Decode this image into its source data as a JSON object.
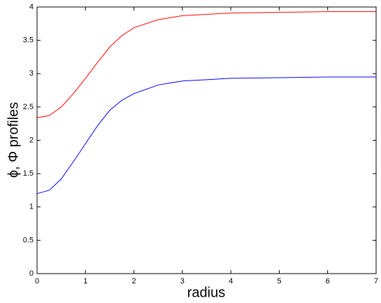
{
  "chart_data": {
    "type": "line",
    "x_label": "radius",
    "y_label": "ϕ, Φ profiles",
    "x": [
      0,
      0.25,
      0.5,
      0.75,
      1,
      1.25,
      1.5,
      1.75,
      2,
      2.5,
      3,
      3.5,
      4,
      5,
      6,
      7
    ],
    "series": [
      {
        "color": "#ff0000",
        "values": [
          2.34,
          2.37,
          2.5,
          2.7,
          2.93,
          3.17,
          3.4,
          3.57,
          3.69,
          3.81,
          3.87,
          3.89,
          3.91,
          3.92,
          3.93,
          3.93
        ]
      },
      {
        "color": "#0000ff",
        "values": [
          1.2,
          1.25,
          1.42,
          1.68,
          1.95,
          2.22,
          2.45,
          2.6,
          2.7,
          2.83,
          2.89,
          2.91,
          2.93,
          2.94,
          2.95,
          2.95
        ]
      }
    ],
    "xlim": [
      0,
      7
    ],
    "xticks": [
      0,
      1,
      2,
      3,
      4,
      5,
      6,
      7
    ],
    "ylim": [
      0,
      4
    ],
    "yticks": [
      0,
      0.5,
      1,
      1.5,
      2,
      2.5,
      3,
      3.5,
      4
    ],
    "grid": false
  }
}
